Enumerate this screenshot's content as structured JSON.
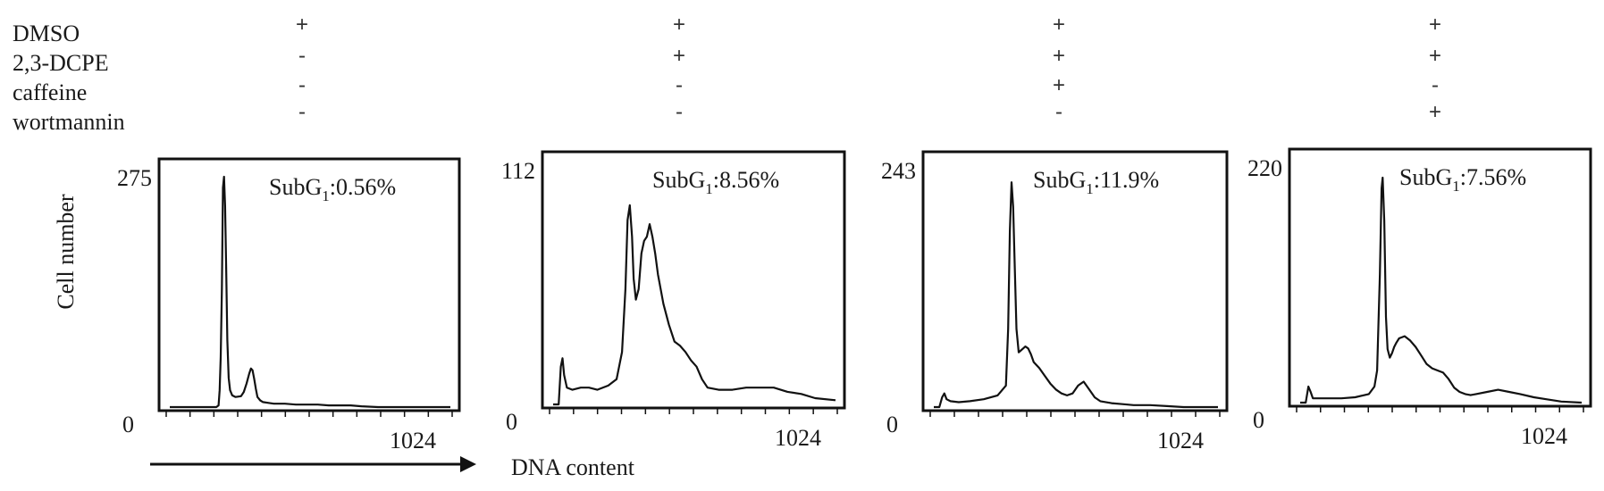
{
  "chart_data": {
    "type": "histogram",
    "ylabel": "Cell number",
    "xlabel": "DNA content",
    "treatments": [
      {
        "name": "DMSO",
        "signs": [
          "+",
          "+",
          "+",
          "+"
        ]
      },
      {
        "name": "2,3-DCPE",
        "signs": [
          "-",
          "+",
          "+",
          "+"
        ]
      },
      {
        "name": "caffeine",
        "signs": [
          "-",
          "-",
          "+",
          "-"
        ]
      },
      {
        "name": "wortmannin",
        "signs": [
          "-",
          "-",
          "-",
          "+"
        ]
      }
    ],
    "panels": [
      {
        "subg1_prefix": "SubG",
        "subg1_sub": "1",
        "subg1_value": ":0.56%",
        "y_max_label": "275",
        "y_min_label": "0",
        "x_max_label": "1024",
        "ylim": [
          0,
          275
        ],
        "xlim": [
          0,
          1024
        ],
        "x": [
          0,
          170,
          178,
          182,
          186,
          190,
          194,
          198,
          202,
          206,
          210,
          215,
          220,
          228,
          240,
          260,
          270,
          280,
          290,
          296,
          302,
          308,
          314,
          320,
          330,
          340,
          360,
          380,
          420,
          460,
          500,
          540,
          580,
          620,
          660,
          700,
          760,
          820,
          900,
          1024
        ],
        "y": [
          0,
          0,
          2,
          20,
          60,
          140,
          262,
          275,
          240,
          160,
          80,
          35,
          20,
          14,
          12,
          13,
          18,
          28,
          40,
          46,
          44,
          34,
          22,
          12,
          8,
          6,
          5,
          4,
          4,
          3,
          3,
          3,
          2,
          2,
          2,
          1,
          0,
          0,
          0,
          0
        ]
      },
      {
        "subg1_prefix": "SubG",
        "subg1_sub": "1",
        "subg1_value": ":8.56%",
        "y_max_label": "112",
        "y_min_label": "0",
        "x_max_label": "1024",
        "ylim": [
          0,
          112
        ],
        "xlim": [
          0,
          1024
        ],
        "x": [
          0,
          20,
          28,
          34,
          40,
          50,
          70,
          100,
          130,
          160,
          200,
          230,
          250,
          262,
          270,
          278,
          286,
          292,
          300,
          310,
          320,
          330,
          340,
          350,
          360,
          370,
          380,
          400,
          420,
          440,
          460,
          480,
          500,
          520,
          540,
          560,
          600,
          650,
          700,
          750,
          800,
          850,
          900,
          950,
          1024
        ],
        "y": [
          0,
          0,
          18,
          22,
          14,
          8,
          7,
          8,
          8,
          7,
          9,
          12,
          25,
          55,
          88,
          95,
          80,
          60,
          50,
          55,
          72,
          78,
          80,
          86,
          80,
          72,
          62,
          48,
          38,
          30,
          28,
          25,
          21,
          18,
          12,
          8,
          7,
          7,
          8,
          8,
          8,
          6,
          5,
          3,
          2
        ]
      },
      {
        "subg1_prefix": "SubG",
        "subg1_sub": "1",
        "subg1_value": ":11.9%",
        "y_max_label": "243",
        "y_min_label": "0",
        "x_max_label": "1024",
        "ylim": [
          0,
          243
        ],
        "xlim": [
          0,
          1024
        ],
        "x": [
          0,
          20,
          30,
          38,
          46,
          60,
          90,
          130,
          180,
          230,
          260,
          268,
          274,
          280,
          286,
          292,
          298,
          306,
          314,
          322,
          330,
          340,
          350,
          360,
          380,
          400,
          420,
          440,
          460,
          480,
          500,
          520,
          540,
          560,
          580,
          600,
          640,
          680,
          720,
          780,
          840,
          900,
          1024
        ],
        "y": [
          0,
          0,
          10,
          14,
          8,
          6,
          5,
          6,
          8,
          12,
          22,
          80,
          180,
          230,
          205,
          140,
          80,
          56,
          58,
          60,
          62,
          60,
          54,
          46,
          40,
          32,
          24,
          18,
          14,
          12,
          14,
          22,
          26,
          18,
          10,
          6,
          4,
          3,
          2,
          2,
          1,
          0,
          0
        ]
      },
      {
        "subg1_prefix": "SubG",
        "subg1_sub": "1",
        "subg1_value": ":7.56%",
        "y_max_label": "220",
        "y_min_label": "0",
        "x_max_label": "1024",
        "ylim": [
          0,
          220
        ],
        "xlim": [
          0,
          1024
        ],
        "x": [
          0,
          20,
          30,
          38,
          46,
          60,
          100,
          150,
          200,
          250,
          270,
          280,
          290,
          296,
          300,
          306,
          312,
          318,
          326,
          334,
          342,
          350,
          360,
          380,
          400,
          420,
          440,
          460,
          480,
          500,
          520,
          540,
          560,
          580,
          600,
          620,
          640,
          680,
          720,
          760,
          800,
          850,
          900,
          950,
          1024
        ],
        "y": [
          0,
          0,
          15,
          10,
          4,
          4,
          4,
          4,
          5,
          8,
          15,
          30,
          120,
          200,
          210,
          170,
          80,
          50,
          42,
          46,
          52,
          56,
          60,
          62,
          58,
          52,
          44,
          36,
          32,
          30,
          28,
          22,
          14,
          10,
          8,
          7,
          8,
          10,
          12,
          10,
          8,
          5,
          3,
          1,
          0
        ]
      }
    ]
  }
}
